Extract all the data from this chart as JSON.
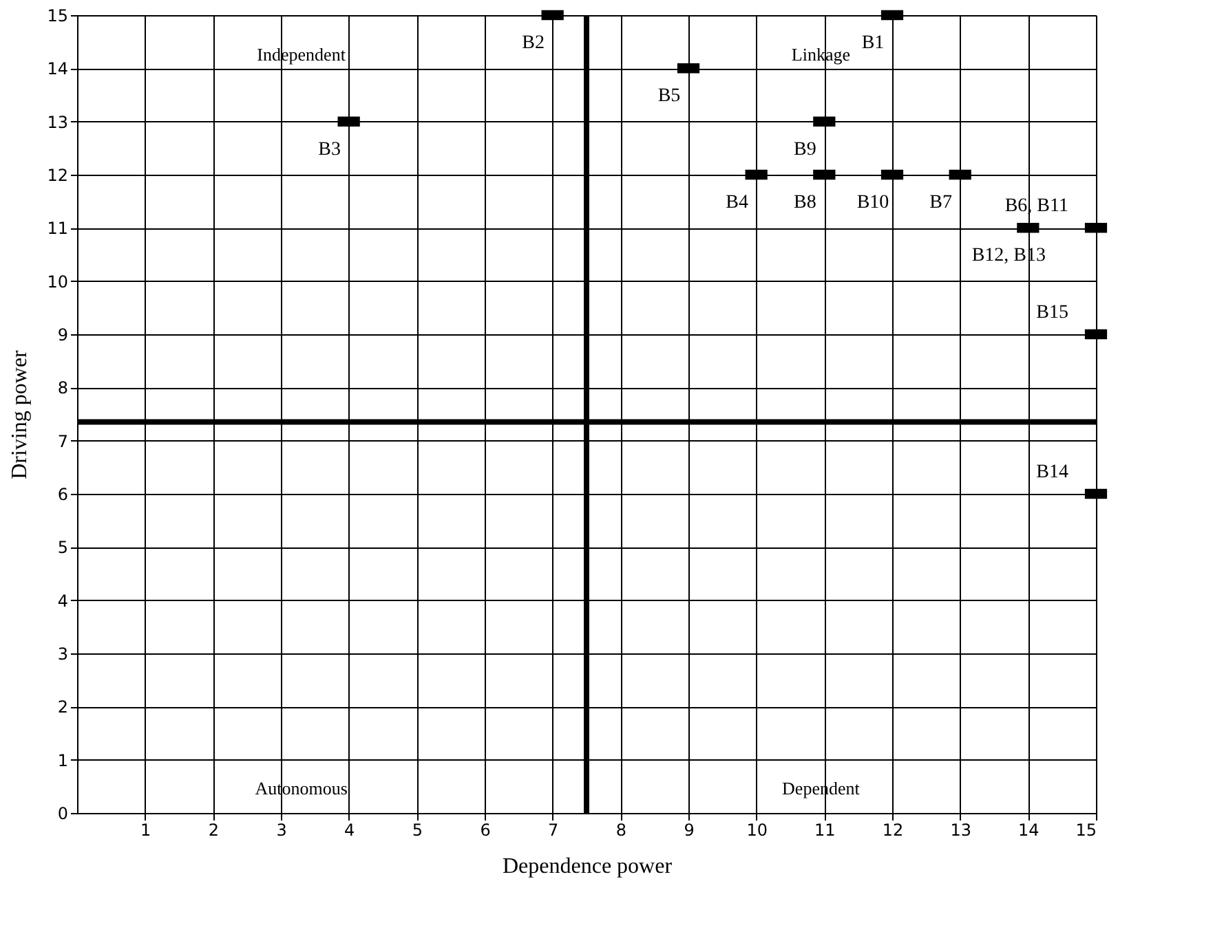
{
  "chart_data": {
    "type": "scatter",
    "xlabel": "Dependence power",
    "ylabel": "Driving power",
    "x": [
      12,
      7,
      4,
      10,
      9,
      15,
      13,
      11,
      11,
      12,
      14,
      15,
      15
    ],
    "values": [
      15,
      15,
      13,
      12,
      14,
      11,
      12,
      12,
      13,
      12,
      11,
      6,
      9
    ],
    "color": "#000000",
    "marker": "square",
    "grid": true,
    "xlim": [
      0,
      15
    ],
    "ylim": [
      0,
      15
    ],
    "xticks": [
      1,
      2,
      3,
      4,
      5,
      6,
      7,
      8,
      9,
      10,
      11,
      12,
      13,
      14,
      15
    ],
    "yticks": [
      0,
      1,
      2,
      3,
      4,
      5,
      6,
      7,
      8,
      9,
      10,
      11,
      12,
      13,
      14,
      15
    ],
    "ref_lines": [
      {
        "axis": "x",
        "value": 7.5,
        "label": null,
        "color": "#000000"
      },
      {
        "axis": "y",
        "value": 7.35,
        "label": null,
        "color": "#000000"
      }
    ],
    "annotations": [
      {
        "text": "B1",
        "x": 12,
        "y": 15
      },
      {
        "text": "B2",
        "x": 7,
        "y": 15
      },
      {
        "text": "B3",
        "x": 4,
        "y": 13
      },
      {
        "text": "B4",
        "x": 10,
        "y": 12
      },
      {
        "text": "B5",
        "x": 9,
        "y": 14
      },
      {
        "text": "B6, B11",
        "x": 15,
        "y": 11
      },
      {
        "text": "B7",
        "x": 13,
        "y": 12
      },
      {
        "text": "B8",
        "x": 11,
        "y": 12
      },
      {
        "text": "B9",
        "x": 11,
        "y": 13
      },
      {
        "text": "B10",
        "x": 12,
        "y": 12
      },
      {
        "text": "B12, B13",
        "x": 14,
        "y": 11
      },
      {
        "text": "B14",
        "x": 15,
        "y": 6
      },
      {
        "text": "B15",
        "x": 15,
        "y": 9
      },
      "Independent",
      "Linkage",
      "Autonomous",
      "Dependent"
    ]
  }
}
